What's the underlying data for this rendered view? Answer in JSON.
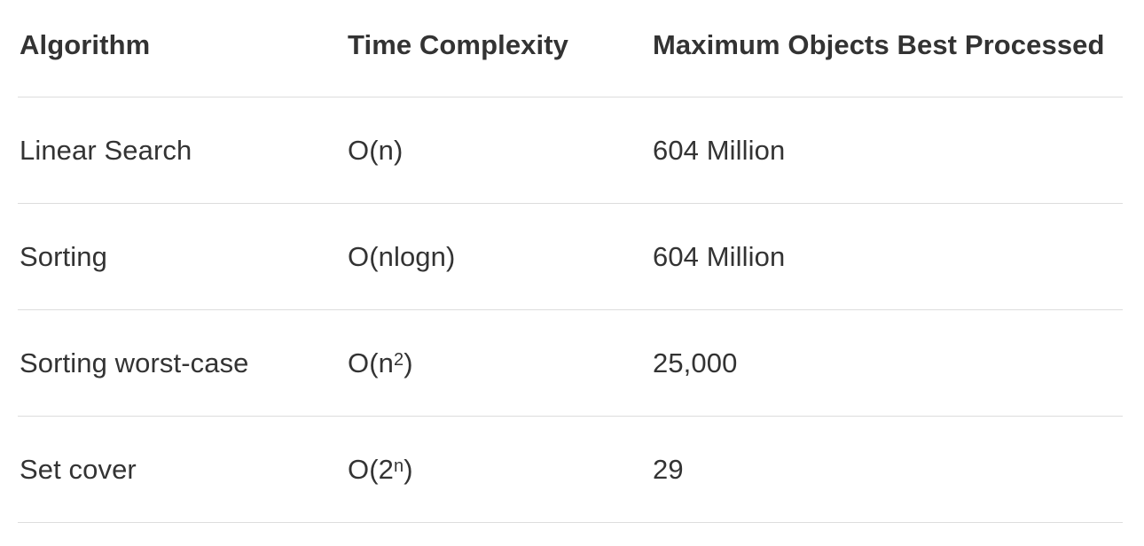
{
  "table": {
    "headers": [
      "Algorithm",
      "Time Complexity",
      "Maximum Objects Best Processed"
    ],
    "rows": [
      {
        "algorithm": "Linear Search",
        "complexity_base": "O(n)",
        "complexity_exp": "",
        "complexity_close": "",
        "max_objects": "604 Million"
      },
      {
        "algorithm": "Sorting",
        "complexity_base": "O(nlogn)",
        "complexity_exp": "",
        "complexity_close": "",
        "max_objects": "604 Million"
      },
      {
        "algorithm": "Sorting worst-case",
        "complexity_base": "O(n",
        "complexity_exp": "2",
        "complexity_close": ")",
        "max_objects": "25,000"
      },
      {
        "algorithm": "Set cover",
        "complexity_base": "O(2",
        "complexity_exp": "n",
        "complexity_close": ")",
        "max_objects": "29"
      }
    ]
  }
}
